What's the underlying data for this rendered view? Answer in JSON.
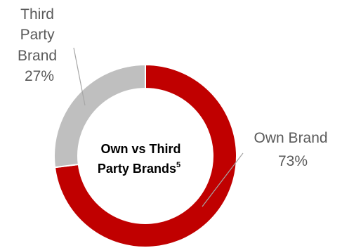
{
  "chart_data": {
    "type": "pie",
    "variant": "donut",
    "title_line1": "Own vs Third",
    "title_line2": "Party Brands",
    "title_superscript": "5",
    "slices": [
      {
        "name": "Own Brand",
        "value": 73,
        "label_lines": [
          "Own Brand"
        ],
        "value_label": "73%",
        "color": "#c00000"
      },
      {
        "name": "Third Party Brand",
        "value": 27,
        "label_lines": [
          "Third",
          "Party",
          "Brand"
        ],
        "value_label": "27%",
        "color": "#bfbfbf"
      }
    ]
  }
}
